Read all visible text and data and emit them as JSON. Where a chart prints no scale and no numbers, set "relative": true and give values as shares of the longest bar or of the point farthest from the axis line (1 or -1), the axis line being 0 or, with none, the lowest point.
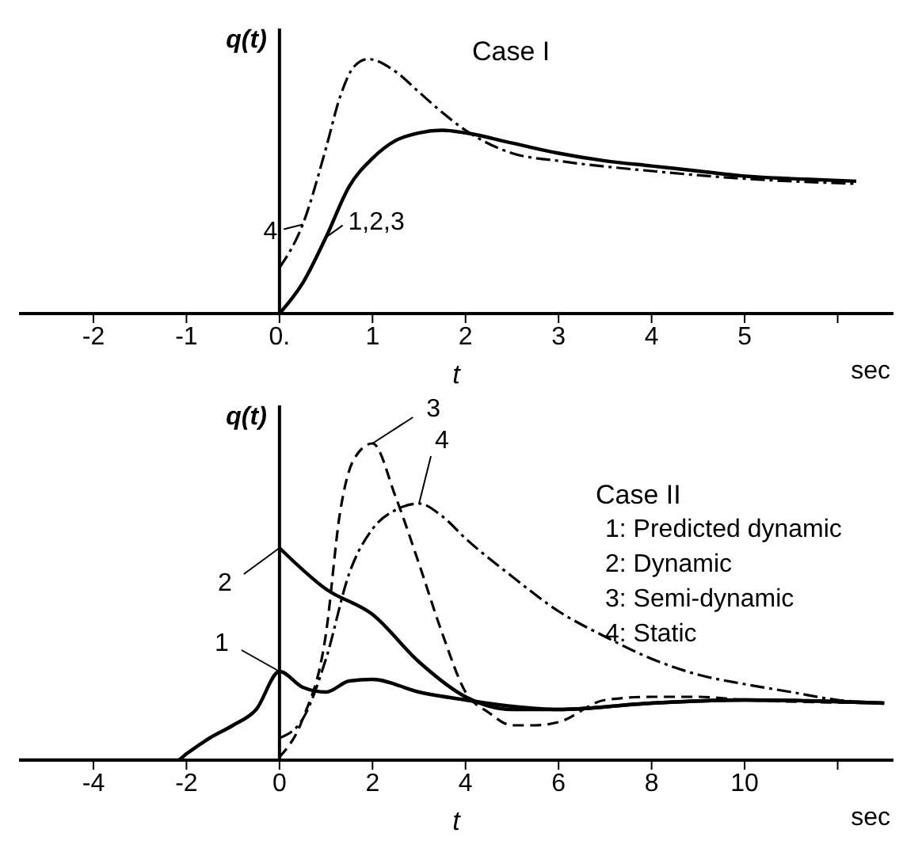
{
  "chart_data": [
    {
      "type": "line",
      "title": "Case I",
      "ylabel": "q(t)",
      "xlabel": "t",
      "annotations": [
        "sec"
      ],
      "relative": true,
      "xlim": [
        -2.8,
        6.6
      ],
      "xticks": [
        -2,
        -1,
        {
          "value": 0,
          "label": "0."
        },
        1,
        2,
        3,
        4,
        5,
        {
          "value": 6,
          "label": null
        }
      ],
      "series": [
        {
          "name": "1,2,3",
          "color": "#000000",
          "line_style": "solid",
          "x": [
            0,
            0.25,
            0.5,
            0.75,
            1,
            1.25,
            1.5,
            1.75,
            2,
            2.5,
            3,
            3.5,
            4,
            4.5,
            5,
            5.5,
            6.2
          ],
          "values": [
            0,
            0.12,
            0.3,
            0.5,
            0.61,
            0.68,
            0.71,
            0.72,
            0.71,
            0.67,
            0.63,
            0.6,
            0.58,
            0.56,
            0.54,
            0.53,
            0.52
          ]
        },
        {
          "name": "4",
          "color": "#000000",
          "line_style": "dashdot",
          "x": [
            0,
            0.25,
            0.5,
            0.65,
            0.8,
            0.95,
            1.25,
            1.5,
            1.75,
            2,
            2.5,
            3,
            4,
            5,
            6.2
          ],
          "values": [
            0.18,
            0.35,
            0.65,
            0.85,
            0.97,
            1,
            0.95,
            0.87,
            0.79,
            0.72,
            0.63,
            0.6,
            0.56,
            0.53,
            0.51
          ]
        }
      ]
    },
    {
      "type": "line",
      "title": "Case II",
      "ylabel": "q(t)",
      "xlabel": "t",
      "annotations": [
        "sec",
        "1: Predicted dynamic",
        "2: Dynamic",
        "3: Semi-dynamic",
        "4: Static"
      ],
      "relative": true,
      "xlim": [
        -5.6,
        13.2
      ],
      "xticks": [
        -4,
        -2,
        0,
        2,
        4,
        6,
        8,
        10,
        {
          "value": 12,
          "label": null
        }
      ],
      "series": [
        {
          "name": "1",
          "color": "#000000",
          "line_style": "solid",
          "x": [
            -5.6,
            -2.2,
            -2,
            -1.5,
            -1,
            -0.5,
            0,
            0.5,
            1,
            1.5,
            2,
            3,
            4,
            5,
            6,
            8,
            10,
            13
          ],
          "values": [
            0,
            0,
            0.02,
            0.07,
            0.11,
            0.16,
            0.28,
            0.23,
            0.215,
            0.25,
            0.255,
            0.215,
            0.19,
            0.17,
            0.16,
            0.18,
            0.19,
            0.18
          ]
        },
        {
          "name": "2",
          "color": "#000000",
          "line_style": "solid",
          "x": [
            0,
            1,
            2,
            3,
            4,
            5,
            6,
            8,
            10,
            13
          ],
          "values": [
            0.67,
            0.54,
            0.46,
            0.31,
            0.2,
            0.16,
            0.16,
            0.18,
            0.19,
            0.18
          ]
        },
        {
          "name": "3",
          "color": "#000000",
          "line_style": "dashed",
          "x": [
            0,
            0.5,
            1,
            1.3,
            1.6,
            2,
            2.5,
            3,
            3.5,
            4,
            4.5,
            5,
            5.5,
            6,
            7,
            8,
            9,
            10,
            13
          ],
          "values": [
            0.01,
            0.13,
            0.4,
            0.78,
            0.95,
            1,
            0.83,
            0.62,
            0.4,
            0.215,
            0.15,
            0.11,
            0.11,
            0.12,
            0.19,
            0.2,
            0.2,
            0.19,
            0.18
          ]
        },
        {
          "name": "4",
          "color": "#000000",
          "line_style": "dashdot",
          "x": [
            0,
            0.5,
            1,
            1.5,
            2,
            2.5,
            3,
            3.5,
            4,
            5,
            6,
            7,
            8,
            9,
            10,
            11,
            12,
            13
          ],
          "values": [
            0.07,
            0.13,
            0.32,
            0.59,
            0.73,
            0.79,
            0.81,
            0.77,
            0.7,
            0.58,
            0.47,
            0.39,
            0.32,
            0.27,
            0.24,
            0.215,
            0.19,
            0.18
          ]
        }
      ]
    }
  ]
}
